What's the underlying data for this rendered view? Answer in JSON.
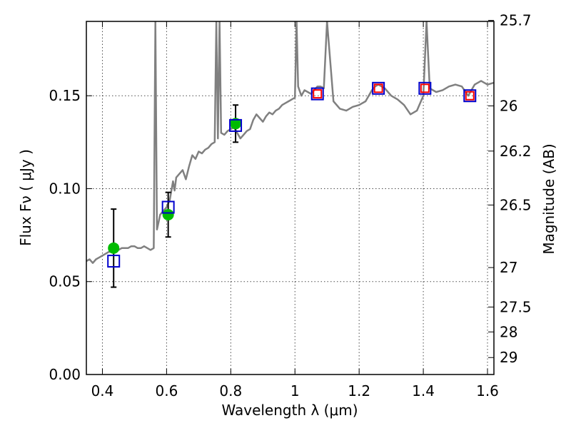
{
  "chart_data": {
    "type": "scatter",
    "xlabel": "Wavelength  λ (μm)",
    "ylabel": "Flux  Fν  ( μJy )",
    "y2label": "Magnitude (AB)",
    "xlim": [
      0.35,
      1.62
    ],
    "ylim": [
      0.0,
      0.19
    ],
    "grid": true,
    "x_ticks": [
      {
        "value": 0.4,
        "label": "0.4"
      },
      {
        "value": 0.6,
        "label": "0.6"
      },
      {
        "value": 0.8,
        "label": "0.8"
      },
      {
        "value": 1.0,
        "label": "1"
      },
      {
        "value": 1.2,
        "label": "1.2"
      },
      {
        "value": 1.4,
        "label": "1.4"
      },
      {
        "value": 1.6,
        "label": "1.6"
      }
    ],
    "y_ticks": [
      {
        "value": 0.0,
        "label": "0.00"
      },
      {
        "value": 0.05,
        "label": "0.05"
      },
      {
        "value": 0.1,
        "label": "0.10"
      },
      {
        "value": 0.15,
        "label": "0.15"
      }
    ],
    "y2_ticks": [
      {
        "value": 25.7,
        "label": "25.7"
      },
      {
        "value": 26.0,
        "label": "26"
      },
      {
        "value": 26.2,
        "label": "26.2"
      },
      {
        "value": 26.5,
        "label": "26.5"
      },
      {
        "value": 27.0,
        "label": "27"
      },
      {
        "value": 27.5,
        "label": "27.5"
      },
      {
        "value": 28.0,
        "label": "28"
      },
      {
        "value": 29.0,
        "label": "29"
      }
    ],
    "series": [
      {
        "type": "line",
        "color": "#808080",
        "x": [
          0.35,
          0.36,
          0.37,
          0.38,
          0.39,
          0.4,
          0.41,
          0.42,
          0.43,
          0.44,
          0.45,
          0.46,
          0.47,
          0.48,
          0.49,
          0.5,
          0.51,
          0.52,
          0.53,
          0.54,
          0.55,
          0.56,
          0.565,
          0.57,
          0.575,
          0.58,
          0.59,
          0.6,
          0.61,
          0.62,
          0.625,
          0.63,
          0.64,
          0.65,
          0.66,
          0.67,
          0.68,
          0.69,
          0.7,
          0.71,
          0.72,
          0.73,
          0.74,
          0.75,
          0.755,
          0.76,
          0.765,
          0.77,
          0.78,
          0.79,
          0.8,
          0.81,
          0.82,
          0.83,
          0.84,
          0.85,
          0.86,
          0.87,
          0.88,
          0.89,
          0.9,
          0.91,
          0.92,
          0.93,
          0.94,
          0.95,
          0.96,
          0.97,
          0.98,
          0.99,
          1.0,
          1.005,
          1.01,
          1.02,
          1.03,
          1.04,
          1.05,
          1.06,
          1.07,
          1.08,
          1.09,
          1.1,
          1.12,
          1.14,
          1.16,
          1.18,
          1.2,
          1.22,
          1.24,
          1.25,
          1.26,
          1.28,
          1.3,
          1.32,
          1.34,
          1.36,
          1.38,
          1.4,
          1.41,
          1.42,
          1.44,
          1.46,
          1.48,
          1.5,
          1.52,
          1.54,
          1.56,
          1.58,
          1.6,
          1.62
        ],
        "y": [
          0.061,
          0.062,
          0.06,
          0.062,
          0.063,
          0.064,
          0.065,
          0.066,
          0.066,
          0.067,
          0.067,
          0.068,
          0.068,
          0.068,
          0.069,
          0.069,
          0.068,
          0.068,
          0.069,
          0.068,
          0.067,
          0.068,
          0.19,
          0.078,
          0.082,
          0.086,
          0.088,
          0.09,
          0.094,
          0.104,
          0.099,
          0.106,
          0.108,
          0.11,
          0.105,
          0.112,
          0.118,
          0.116,
          0.12,
          0.119,
          0.121,
          0.122,
          0.124,
          0.125,
          0.19,
          0.127,
          0.19,
          0.13,
          0.129,
          0.131,
          0.132,
          0.133,
          0.13,
          0.127,
          0.129,
          0.131,
          0.132,
          0.137,
          0.14,
          0.138,
          0.136,
          0.139,
          0.141,
          0.14,
          0.142,
          0.143,
          0.145,
          0.146,
          0.147,
          0.148,
          0.149,
          0.19,
          0.155,
          0.15,
          0.153,
          0.152,
          0.151,
          0.153,
          0.155,
          0.155,
          0.154,
          0.19,
          0.147,
          0.143,
          0.142,
          0.144,
          0.145,
          0.147,
          0.153,
          0.155,
          0.156,
          0.154,
          0.15,
          0.148,
          0.145,
          0.14,
          0.142,
          0.15,
          0.19,
          0.154,
          0.152,
          0.153,
          0.155,
          0.156,
          0.155,
          0.15,
          0.156,
          0.158,
          0.156,
          0.157
        ]
      },
      {
        "type": "scatter",
        "marker": "circle",
        "color": "#00bb00",
        "x": [
          0.435,
          0.605,
          0.815
        ],
        "y": [
          0.068,
          0.086,
          0.135
        ],
        "yerr": [
          0.021,
          0.012,
          0.01
        ]
      },
      {
        "type": "scatter",
        "marker": "square",
        "color": "#0000cc",
        "x": [
          0.435,
          0.605,
          0.815,
          1.07,
          1.26,
          1.405,
          1.545
        ],
        "y": [
          0.061,
          0.09,
          0.134,
          0.151,
          0.154,
          0.154,
          0.15
        ]
      },
      {
        "type": "scatter",
        "marker": "square",
        "color": "#ff0000",
        "x": [
          1.07,
          1.26,
          1.405,
          1.545
        ],
        "y": [
          0.151,
          0.154,
          0.154,
          0.15
        ]
      }
    ]
  }
}
